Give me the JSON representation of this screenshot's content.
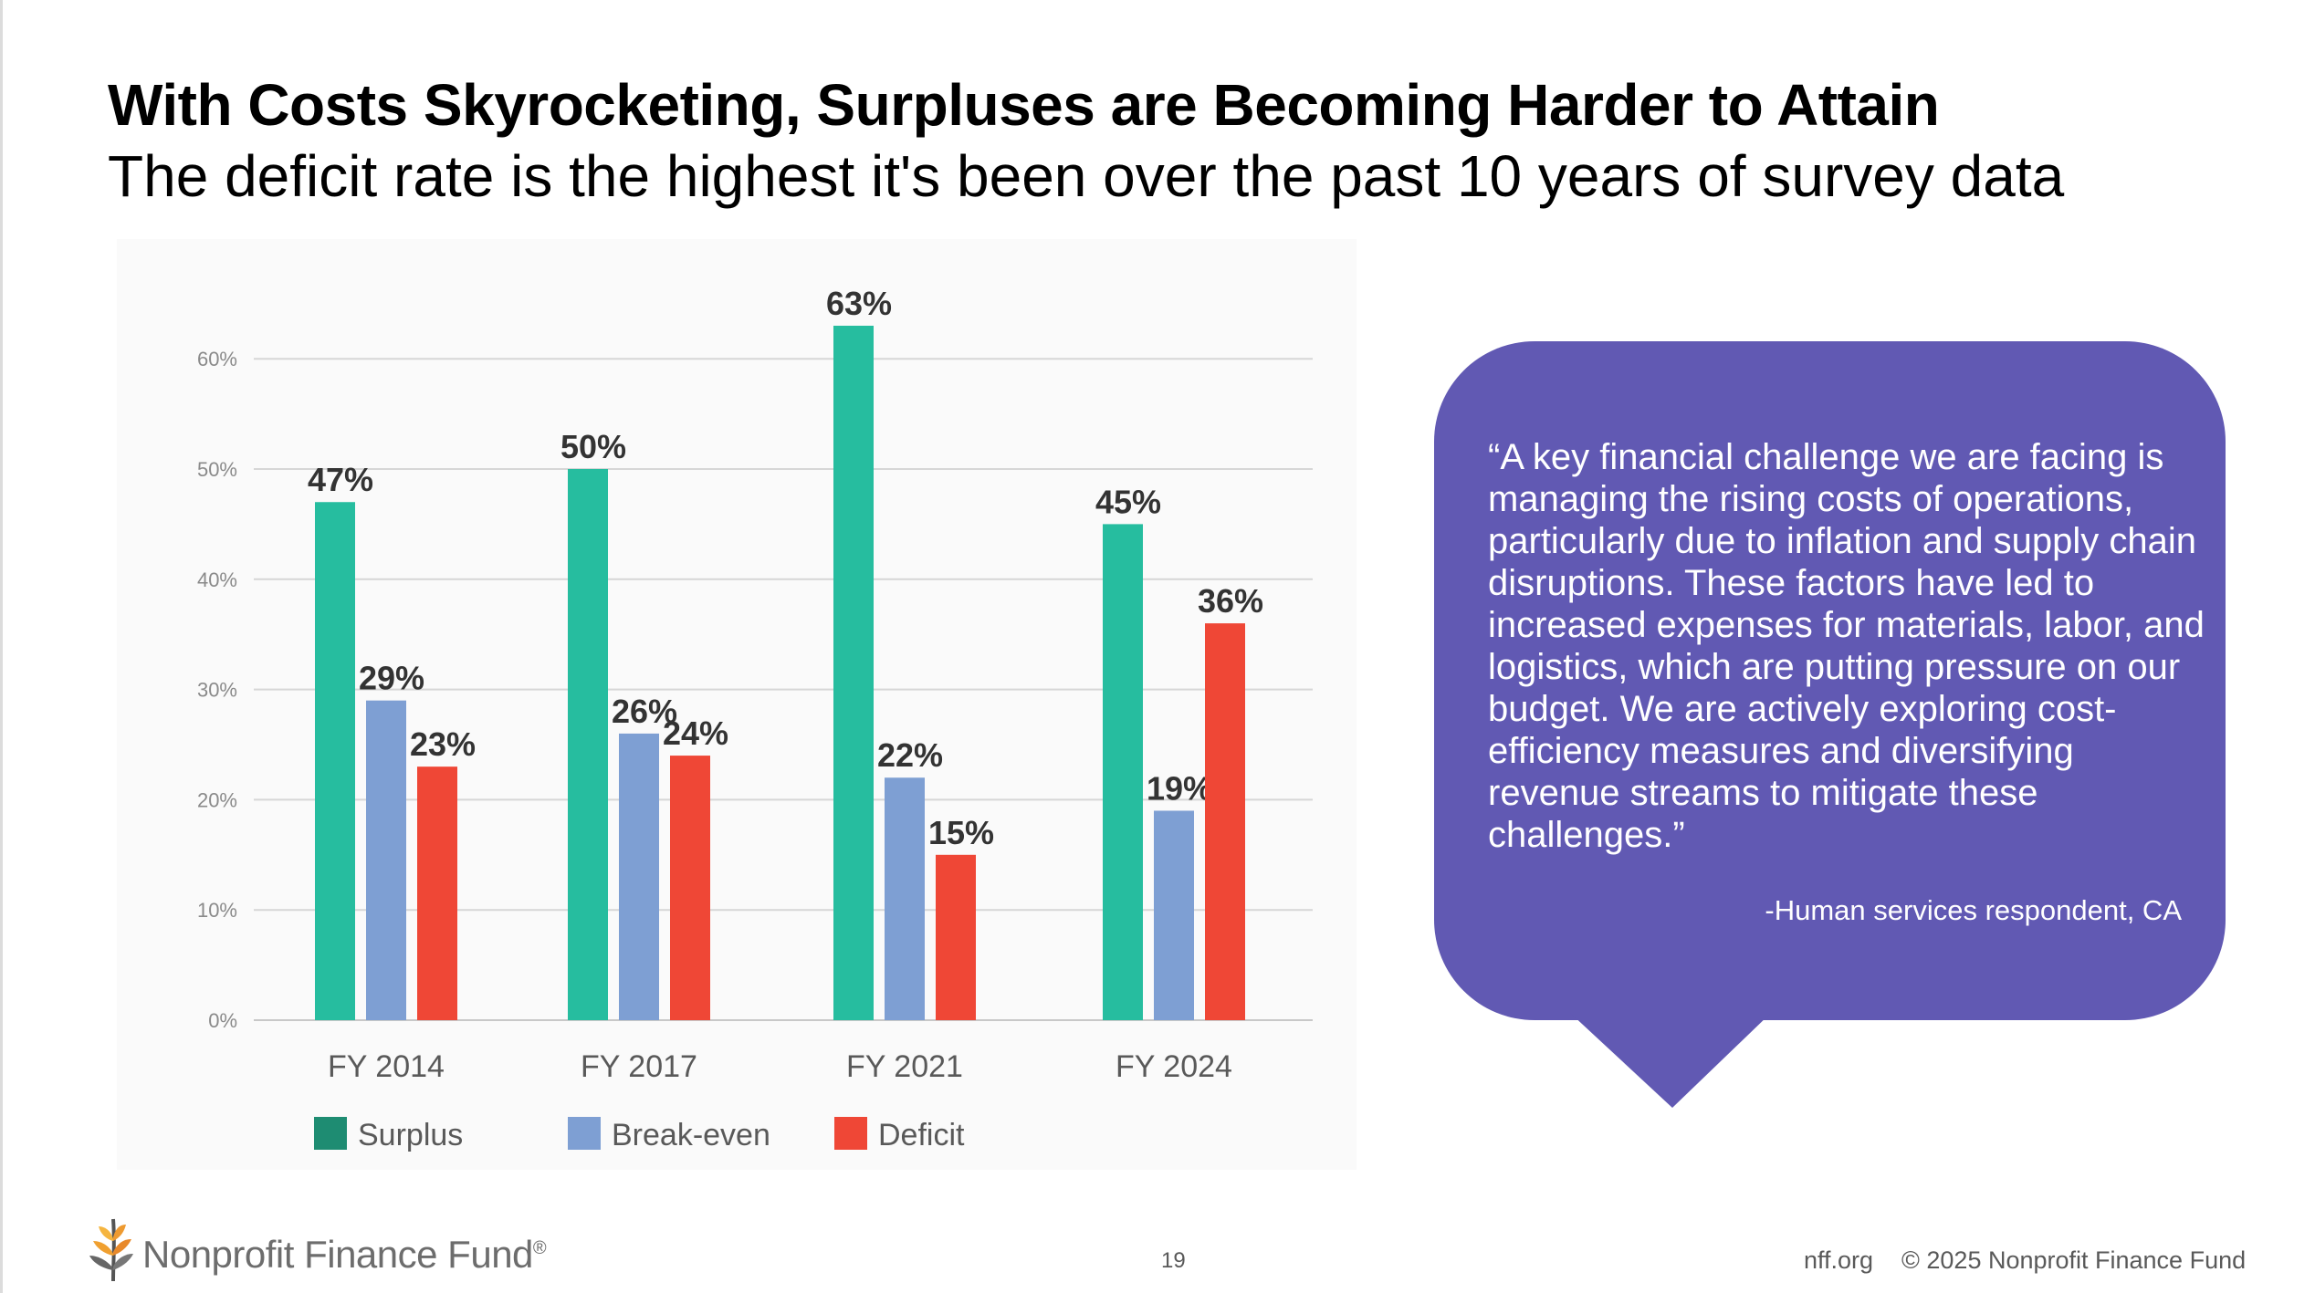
{
  "slide": {
    "title": "With Costs Skyrocketing, Surpluses are Becoming Harder to Attain",
    "subtitle": "The deficit rate is the highest it's been over the past 10 years of survey data"
  },
  "chart_data": {
    "type": "bar",
    "categories": [
      "FY 2014",
      "FY 2017",
      "FY 2021",
      "FY 2024"
    ],
    "series": [
      {
        "name": "Surplus",
        "values": [
          47,
          50,
          63,
          45
        ],
        "color": "#26bd9f",
        "legend_color": "#1e8c72"
      },
      {
        "name": "Break-even",
        "values": [
          29,
          26,
          22,
          19
        ],
        "color": "#7e9fd3",
        "legend_color": "#7e9fd3"
      },
      {
        "name": "Deficit",
        "values": [
          23,
          24,
          15,
          36
        ],
        "color": "#ef4736",
        "legend_color": "#ef4736"
      }
    ],
    "value_labels": [
      [
        "47%",
        "50%",
        "63%",
        "45%"
      ],
      [
        "29%",
        "26%",
        "22%",
        "19%"
      ],
      [
        "23%",
        "24%",
        "15%",
        "36%"
      ]
    ],
    "y_ticks": [
      {
        "value": 0,
        "label": "0%"
      },
      {
        "value": 10,
        "label": "10%"
      },
      {
        "value": 20,
        "label": "20%"
      },
      {
        "value": 30,
        "label": "30%"
      },
      {
        "value": 40,
        "label": "40%"
      },
      {
        "value": 50,
        "label": "50%"
      },
      {
        "value": 60,
        "label": "60%"
      }
    ],
    "ylim": [
      0,
      65
    ],
    "grid": true,
    "legend_position": "bottom-left",
    "title": "",
    "xlabel": "",
    "ylabel": ""
  },
  "quote": {
    "text": "“A key financial challenge we are facing is managing the rising costs of operations, particularly due to inflation and supply chain disruptions. These factors have led to increased expenses for materials, labor, and logistics, which are putting pressure on our budget. We are actively exploring cost-efficiency measures and diversifying revenue streams to mitigate these challenges.”",
    "attribution": "-Human services respondent, CA",
    "bubble_color": "#6159b3"
  },
  "footer": {
    "logo_text": "Nonprofit Finance Fund",
    "logo_mark": "®",
    "logo_icon": "wheat-stalk-icon",
    "page_number": "19",
    "site": "nff.org",
    "copyright": "© 2025 Nonprofit Finance Fund"
  }
}
